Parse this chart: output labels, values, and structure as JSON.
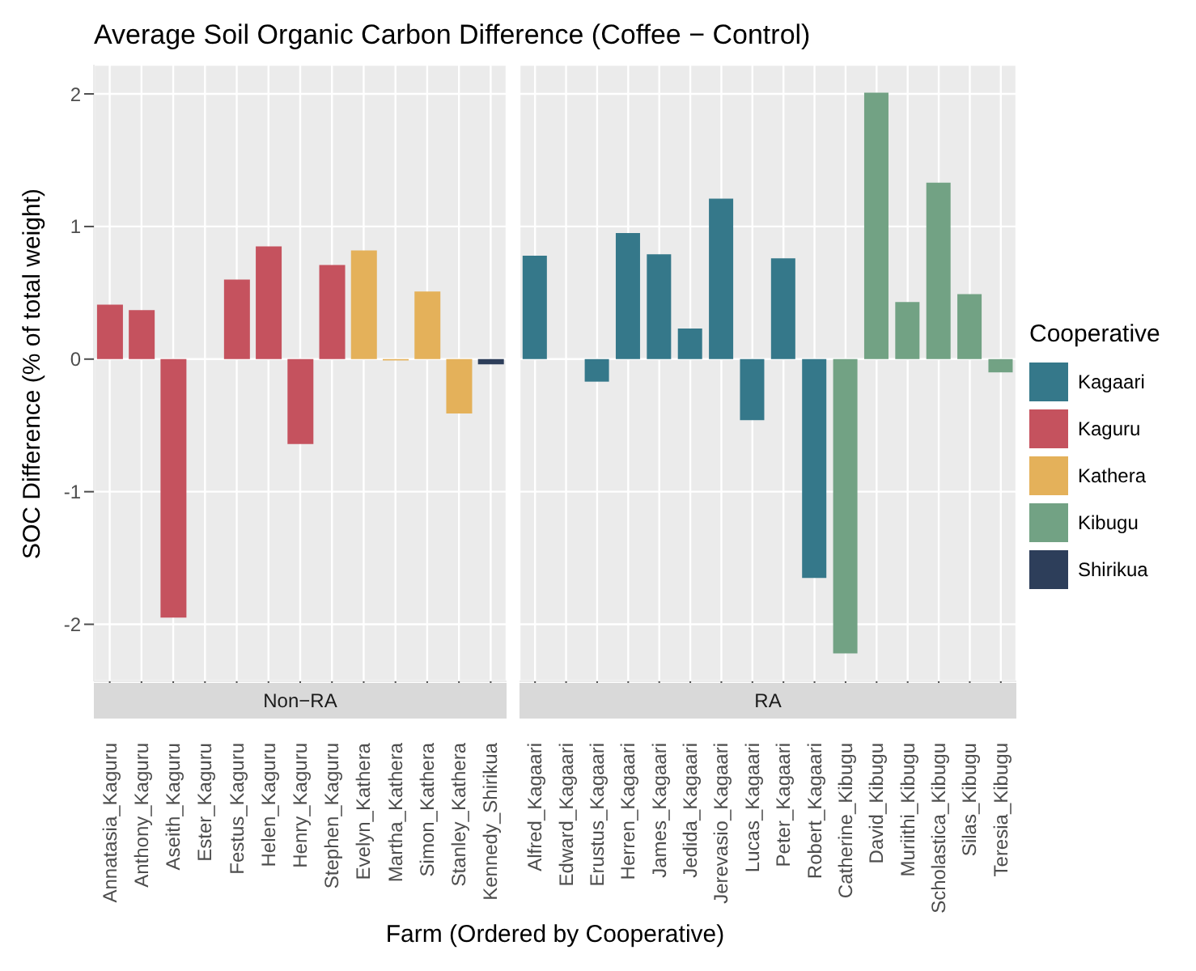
{
  "chart_data": [
    {
      "type": "bar",
      "title": "Average Soil Organic Carbon Difference (Coffee − Control)",
      "subtitle": "Non−RA",
      "xlabel": "Farm (Ordered by Cooperative)",
      "ylabel": "SOC Difference (% of total weight)",
      "categories": [
        "Annatasia_Kaguru",
        "Anthony_Kaguru",
        "Aseith_Kaguru",
        "Ester_Kaguru",
        "Festus_Kaguru",
        "Helen_Kaguru",
        "Henry_Kaguru",
        "Stephen_Kaguru",
        "Evelyn_Kathera",
        "Martha_Kathera",
        "Simon_Kathera",
        "Stanley_Kathera",
        "Kennedy_Shirikua"
      ],
      "series": [
        {
          "name": "Kagaari",
          "color": "#35788a",
          "values": [
            null,
            null,
            null,
            null,
            null,
            null,
            null,
            null,
            null,
            null,
            null,
            null,
            null
          ]
        },
        {
          "name": "Kaguru",
          "color": "#c5525e",
          "values": [
            0.41,
            0.37,
            -1.95,
            null,
            0.6,
            0.85,
            -0.64,
            0.71,
            null,
            null,
            null,
            null,
            null
          ]
        },
        {
          "name": "Kathera",
          "color": "#e4b15a",
          "values": [
            null,
            null,
            null,
            null,
            null,
            null,
            null,
            null,
            0.82,
            -0.01,
            0.51,
            -0.41,
            null
          ]
        },
        {
          "name": "Kibugu",
          "color": "#72a284",
          "values": [
            null,
            null,
            null,
            null,
            null,
            null,
            null,
            null,
            null,
            null,
            null,
            null,
            null
          ]
        },
        {
          "name": "Shirikua",
          "color": "#2d3e5a",
          "values": [
            null,
            null,
            null,
            null,
            null,
            null,
            null,
            null,
            null,
            null,
            null,
            null,
            -0.04
          ]
        }
      ],
      "stacked": true,
      "ylim": [
        -2.43,
        2.22
      ],
      "yticks": [
        -2,
        -1,
        0,
        1,
        2
      ],
      "grid": true,
      "legend": "right",
      "legend_title": "Cooperative"
    },
    {
      "type": "bar",
      "subtitle": "RA",
      "categories": [
        "Alfred_Kagaari",
        "Edward_Kagaari",
        "Erustus_Kagaari",
        "Herren_Kagaari",
        "James_Kagaari",
        "Jedida_Kagaari",
        "Jerevasio_Kagaari",
        "Lucas_Kagaari",
        "Peter_Kagaari",
        "Robert_Kagaari",
        "Catherine_Kibugu",
        "David_Kibugu",
        "Muriithi_Kibugu",
        "Scholastica_Kibugu",
        "Silas_Kibugu",
        "Teresia_Kibugu"
      ],
      "series": [
        {
          "color": "#35788a",
          "values": [
            0.78,
            null,
            -0.17,
            0.95,
            0.79,
            0.23,
            1.21,
            -0.46,
            0.76,
            -1.65,
            null,
            null,
            null,
            null,
            null,
            null
          ]
        },
        {
          "color": "#72a284",
          "values": [
            null,
            null,
            null,
            null,
            null,
            null,
            null,
            null,
            null,
            null,
            -2.22,
            2.01,
            0.43,
            1.33,
            0.49,
            -0.1
          ]
        }
      ],
      "stacked": true,
      "ylim": [
        -2.43,
        2.22
      ],
      "yticks": [
        -2,
        -1,
        0,
        1,
        2
      ],
      "grid": true,
      "tick_labels": "x",
      "legend": false
    }
  ]
}
